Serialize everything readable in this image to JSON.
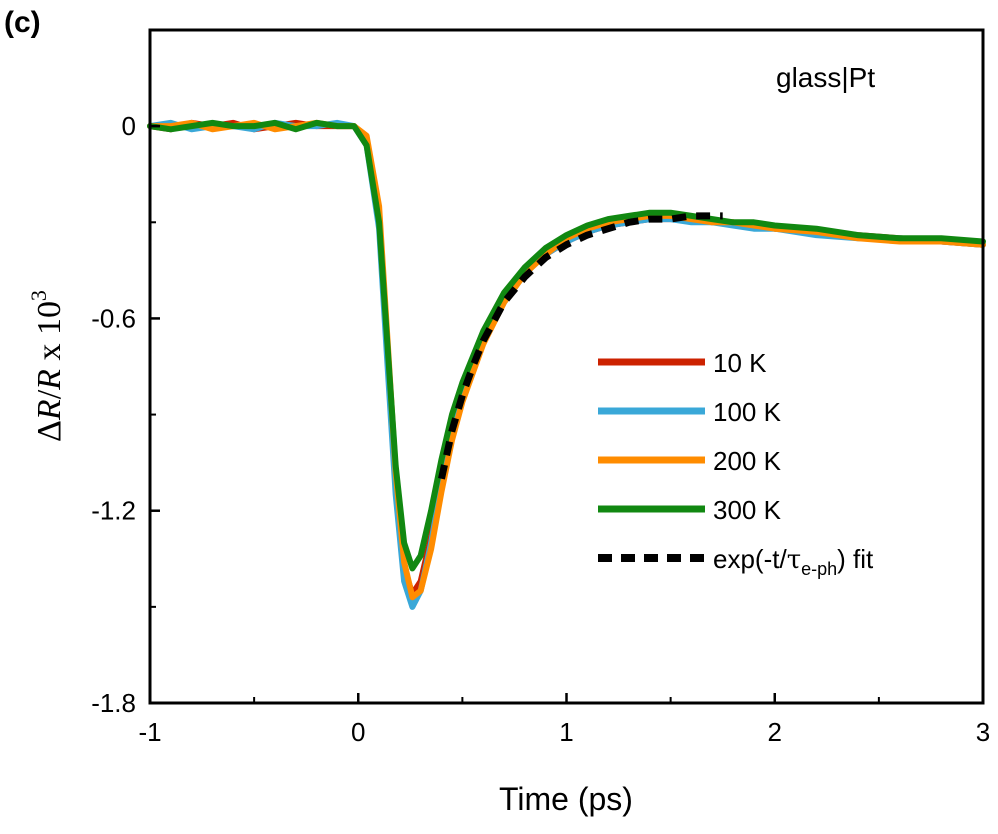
{
  "chart_data": {
    "type": "line",
    "panel_label": "(c)",
    "annotation": "glass|Pt",
    "xlabel": "Time (ps)",
    "ylabel": {
      "delta": "Δ",
      "r1": "R",
      "slash": "/",
      "r2": "R",
      "times": " x 10",
      "exp": "3"
    },
    "xlim": [
      -1,
      3
    ],
    "ylim": [
      -1.8,
      0.3
    ],
    "xticks": [
      -1,
      0,
      1,
      2,
      3
    ],
    "yticks": [
      0,
      -0.6,
      -1.2,
      -1.8
    ],
    "ytick_labels": [
      "0",
      "-0.6",
      "-1.2",
      "-1.8"
    ],
    "legend_position": "right",
    "series": [
      {
        "name": "10 K",
        "color": "#cc2200",
        "minimum": -1.47,
        "x": [
          -1,
          -0.9,
          -0.8,
          -0.7,
          -0.6,
          -0.5,
          -0.4,
          -0.3,
          -0.2,
          -0.1,
          -0.02,
          0.04,
          0.1,
          0.14,
          0.18,
          0.22,
          0.26,
          0.3,
          0.35,
          0.4,
          0.45,
          0.5,
          0.6,
          0.7,
          0.8,
          0.9,
          1.0,
          1.1,
          1.2,
          1.3,
          1.4,
          1.5,
          1.6,
          1.7,
          1.8,
          1.9,
          2.0,
          2.2,
          2.4,
          2.6,
          2.8,
          3.0
        ],
        "y": [
          0.0,
          -0.01,
          0.01,
          0.0,
          0.01,
          -0.01,
          0.0,
          0.01,
          0.0,
          0.0,
          0.0,
          -0.05,
          -0.3,
          -0.7,
          -1.1,
          -1.38,
          -1.46,
          -1.42,
          -1.28,
          -1.1,
          -0.95,
          -0.83,
          -0.66,
          -0.54,
          -0.45,
          -0.4,
          -0.36,
          -0.33,
          -0.31,
          -0.3,
          -0.29,
          -0.29,
          -0.29,
          -0.3,
          -0.3,
          -0.31,
          -0.32,
          -0.33,
          -0.34,
          -0.35,
          -0.36,
          -0.37
        ]
      },
      {
        "name": "100 K",
        "color": "#3aa8d8",
        "minimum": -1.5,
        "x": [
          -1,
          -0.9,
          -0.8,
          -0.7,
          -0.6,
          -0.5,
          -0.4,
          -0.3,
          -0.2,
          -0.1,
          -0.02,
          0.04,
          0.1,
          0.14,
          0.18,
          0.22,
          0.26,
          0.3,
          0.35,
          0.4,
          0.45,
          0.5,
          0.6,
          0.7,
          0.8,
          0.9,
          1.0,
          1.1,
          1.2,
          1.3,
          1.4,
          1.5,
          1.6,
          1.7,
          1.8,
          1.9,
          2.0,
          2.2,
          2.4,
          2.6,
          2.8,
          3.0
        ],
        "y": [
          0.0,
          0.01,
          -0.01,
          0.0,
          0.0,
          -0.01,
          0.01,
          0.0,
          0.0,
          0.01,
          0.0,
          -0.06,
          -0.32,
          -0.74,
          -1.15,
          -1.42,
          -1.5,
          -1.45,
          -1.3,
          -1.12,
          -0.96,
          -0.84,
          -0.67,
          -0.55,
          -0.46,
          -0.4,
          -0.36,
          -0.33,
          -0.31,
          -0.3,
          -0.29,
          -0.29,
          -0.3,
          -0.3,
          -0.31,
          -0.32,
          -0.32,
          -0.34,
          -0.35,
          -0.35,
          -0.36,
          -0.37
        ]
      },
      {
        "name": "200 K",
        "color": "#ff8c00",
        "minimum": -1.48,
        "x": [
          -1,
          -0.9,
          -0.8,
          -0.7,
          -0.6,
          -0.5,
          -0.4,
          -0.3,
          -0.2,
          -0.1,
          -0.02,
          0.04,
          0.1,
          0.14,
          0.18,
          0.22,
          0.26,
          0.3,
          0.35,
          0.4,
          0.45,
          0.5,
          0.6,
          0.7,
          0.8,
          0.9,
          1.0,
          1.1,
          1.2,
          1.3,
          1.4,
          1.5,
          1.6,
          1.7,
          1.8,
          1.9,
          2.0,
          2.2,
          2.4,
          2.6,
          2.8,
          3.0
        ],
        "y": [
          0.0,
          0.0,
          0.01,
          -0.01,
          0.0,
          0.01,
          -0.01,
          0.0,
          0.01,
          0.0,
          0.0,
          -0.03,
          -0.25,
          -0.66,
          -1.08,
          -1.36,
          -1.47,
          -1.45,
          -1.32,
          -1.14,
          -0.98,
          -0.86,
          -0.68,
          -0.55,
          -0.46,
          -0.4,
          -0.35,
          -0.32,
          -0.3,
          -0.29,
          -0.28,
          -0.28,
          -0.29,
          -0.3,
          -0.3,
          -0.31,
          -0.32,
          -0.33,
          -0.35,
          -0.36,
          -0.36,
          -0.37
        ]
      },
      {
        "name": "300 K",
        "color": "#118811",
        "minimum": -1.38,
        "x": [
          -1,
          -0.9,
          -0.8,
          -0.7,
          -0.6,
          -0.5,
          -0.4,
          -0.3,
          -0.2,
          -0.1,
          -0.02,
          0.04,
          0.1,
          0.14,
          0.18,
          0.22,
          0.26,
          0.3,
          0.35,
          0.4,
          0.45,
          0.5,
          0.6,
          0.7,
          0.8,
          0.9,
          1.0,
          1.1,
          1.2,
          1.3,
          1.4,
          1.5,
          1.6,
          1.7,
          1.8,
          1.9,
          2.0,
          2.2,
          2.4,
          2.6,
          2.8,
          3.0
        ],
        "y": [
          0.0,
          -0.01,
          0.0,
          0.01,
          0.0,
          0.0,
          0.01,
          -0.01,
          0.01,
          0.0,
          0.0,
          -0.06,
          -0.3,
          -0.68,
          -1.06,
          -1.3,
          -1.38,
          -1.34,
          -1.2,
          -1.04,
          -0.9,
          -0.8,
          -0.64,
          -0.52,
          -0.44,
          -0.38,
          -0.34,
          -0.31,
          -0.29,
          -0.28,
          -0.27,
          -0.27,
          -0.28,
          -0.29,
          -0.3,
          -0.3,
          -0.31,
          -0.32,
          -0.34,
          -0.35,
          -0.35,
          -0.36
        ]
      },
      {
        "name": "exp(-t/τe-ph) fit",
        "name_parts": {
          "pre": "exp(-t/",
          "tau": "τ",
          "sub": "e-ph",
          "post": ") fit"
        },
        "color": "#000000",
        "dash": true,
        "x": [
          0.4,
          0.45,
          0.5,
          0.55,
          0.6,
          0.65,
          0.7,
          0.8,
          0.9,
          1.0,
          1.1,
          1.2,
          1.3,
          1.4,
          1.5,
          1.6,
          1.7,
          1.75
        ],
        "y": [
          -1.1,
          -0.95,
          -0.84,
          -0.75,
          -0.67,
          -0.61,
          -0.55,
          -0.47,
          -0.41,
          -0.37,
          -0.34,
          -0.32,
          -0.3,
          -0.29,
          -0.29,
          -0.28,
          -0.28,
          -0.28
        ]
      }
    ]
  }
}
